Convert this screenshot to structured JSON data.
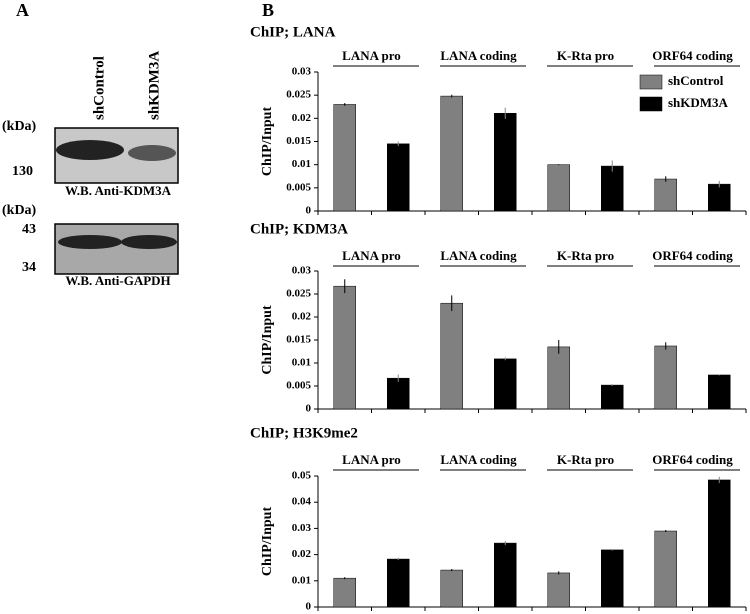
{
  "panel_a": {
    "label": "A",
    "lanes": [
      "shControl",
      "shKDM3A"
    ],
    "blots": [
      {
        "unit": "(kDa)",
        "markers": [
          "130"
        ],
        "caption": "W.B. Anti-KDM3A"
      },
      {
        "unit": "(kDa)",
        "markers": [
          "43",
          "34"
        ],
        "caption": "W.B. Anti-GAPDH"
      }
    ]
  },
  "panel_b": {
    "label": "B"
  },
  "chart_data": [
    {
      "type": "bar",
      "title": "ChIP; LANA",
      "ylabel": "ChIP/Input",
      "categories": [
        "LANA pro",
        "LANA coding",
        "K-Rta pro",
        "ORF64 coding"
      ],
      "series": [
        {
          "name": "shControl",
          "color": "#808080",
          "values": [
            0.023,
            0.0248,
            0.01,
            0.0069
          ],
          "errors": [
            0.0003,
            0.0003,
            0.0001,
            0.0006
          ]
        },
        {
          "name": "shKDM3A",
          "color": "#000000",
          "values": [
            0.0145,
            0.0211,
            0.0097,
            0.0058
          ],
          "errors": [
            0.0005,
            0.0012,
            0.0012,
            0.0007
          ]
        }
      ],
      "ylim": [
        0,
        0.03
      ],
      "yticks": [
        0,
        0.005,
        0.01,
        0.015,
        0.02,
        0.025,
        0.03
      ],
      "legend": "upper right"
    },
    {
      "type": "bar",
      "title": "ChIP; KDM3A",
      "ylabel": "ChIP/Input",
      "categories": [
        "LANA pro",
        "LANA coding",
        "K-Rta pro",
        "ORF64 coding"
      ],
      "series": [
        {
          "color": "#808080",
          "values": [
            0.0267,
            0.023,
            0.0135,
            0.0137
          ],
          "errors": [
            0.0015,
            0.0017,
            0.0015,
            0.0008
          ]
        },
        {
          "color": "#000000",
          "values": [
            0.0067,
            0.0109,
            0.0052,
            0.0074
          ],
          "errors": [
            0.0008,
            0.0003,
            0.0002,
            0.0001
          ]
        }
      ],
      "ylim": [
        0,
        0.03
      ],
      "yticks": [
        0,
        0.005,
        0.01,
        0.015,
        0.02,
        0.025,
        0.03
      ]
    },
    {
      "type": "bar",
      "title": "ChIP; H3K9me2",
      "ylabel": "ChIP/Input",
      "categories": [
        "LANA pro",
        "LANA coding",
        "K-Rta pro",
        "ORF64 coding"
      ],
      "series": [
        {
          "color": "#808080",
          "values": [
            0.011,
            0.0141,
            0.013,
            0.029
          ],
          "errors": [
            0.0004,
            0.0004,
            0.0006,
            0.0004
          ]
        },
        {
          "color": "#000000",
          "values": [
            0.0183,
            0.0244,
            0.0218,
            0.0485
          ],
          "errors": [
            0.0004,
            0.0008,
            0.0003,
            0.0012
          ]
        }
      ],
      "ylim": [
        0,
        0.05
      ],
      "yticks": [
        0,
        0.01,
        0.02,
        0.03,
        0.04,
        0.05
      ]
    }
  ]
}
